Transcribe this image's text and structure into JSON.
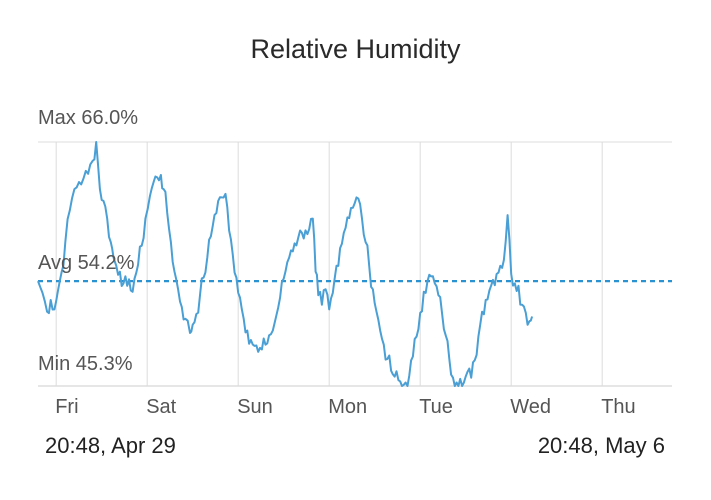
{
  "chart_data": {
    "type": "line",
    "title": "Relative Humidity",
    "series_color": "#4a9fd4",
    "avg_color": "#2b92d2",
    "grid_color": "#dddddd",
    "max_label": "Max 66.0%",
    "avg_label": "Avg 54.2%",
    "min_label": "Min 45.3%",
    "max": 66.0,
    "avg": 54.2,
    "min": 45.3,
    "ylim": [
      45.3,
      66.0
    ],
    "x_ticks": [
      "Fri",
      "Sat",
      "Sun",
      "Mon",
      "Tue",
      "Wed",
      "Thu"
    ],
    "range_start": "20:48,  Apr 29",
    "range_end": "20:48,  May 6",
    "points": [
      [
        0.0,
        54.2
      ],
      [
        0.05,
        53.2
      ],
      [
        0.1,
        51.6
      ],
      [
        0.14,
        52.6
      ],
      [
        0.18,
        51.8
      ],
      [
        0.22,
        53.4
      ],
      [
        0.26,
        55.0
      ],
      [
        0.3,
        57.5
      ],
      [
        0.35,
        60.2
      ],
      [
        0.4,
        62.0
      ],
      [
        0.45,
        62.6
      ],
      [
        0.5,
        62.9
      ],
      [
        0.55,
        63.3
      ],
      [
        0.6,
        64.4
      ],
      [
        0.64,
        66.0
      ],
      [
        0.68,
        62.0
      ],
      [
        0.72,
        61.0
      ],
      [
        0.76,
        59.5
      ],
      [
        0.8,
        57.5
      ],
      [
        0.83,
        56.2
      ],
      [
        0.86,
        55.5
      ],
      [
        0.9,
        55.0
      ],
      [
        0.94,
        54.0
      ],
      [
        0.98,
        53.8
      ],
      [
        1.02,
        53.4
      ],
      [
        1.06,
        54.4
      ],
      [
        1.1,
        55.6
      ],
      [
        1.14,
        57.2
      ],
      [
        1.18,
        59.5
      ],
      [
        1.23,
        61.4
      ],
      [
        1.27,
        62.6
      ],
      [
        1.31,
        63.0
      ],
      [
        1.35,
        63.2
      ],
      [
        1.38,
        62.0
      ],
      [
        1.42,
        60.0
      ],
      [
        1.46,
        57.5
      ],
      [
        1.5,
        55.0
      ],
      [
        1.54,
        53.5
      ],
      [
        1.58,
        52.0
      ],
      [
        1.62,
        51.0
      ],
      [
        1.67,
        49.8
      ],
      [
        1.7,
        50.5
      ],
      [
        1.74,
        51.4
      ],
      [
        1.78,
        53.0
      ],
      [
        1.82,
        54.5
      ],
      [
        1.86,
        56.2
      ],
      [
        1.9,
        58.0
      ],
      [
        1.94,
        59.8
      ],
      [
        1.98,
        61.0
      ],
      [
        2.02,
        61.3
      ],
      [
        2.06,
        61.6
      ],
      [
        2.1,
        58.5
      ],
      [
        2.14,
        56.5
      ],
      [
        2.18,
        54.5
      ],
      [
        2.22,
        52.8
      ],
      [
        2.26,
        51.0
      ],
      [
        2.3,
        50.0
      ],
      [
        2.34,
        49.2
      ],
      [
        2.38,
        48.7
      ],
      [
        2.42,
        48.2
      ],
      [
        2.46,
        48.4
      ],
      [
        2.5,
        48.8
      ],
      [
        2.54,
        49.6
      ],
      [
        2.58,
        50.0
      ],
      [
        2.62,
        51.3
      ],
      [
        2.66,
        52.8
      ],
      [
        2.7,
        54.4
      ],
      [
        2.74,
        55.8
      ],
      [
        2.78,
        56.8
      ],
      [
        2.82,
        57.4
      ],
      [
        2.86,
        57.9
      ],
      [
        2.9,
        58.3
      ],
      [
        2.94,
        58.5
      ],
      [
        2.98,
        58.6
      ],
      [
        3.02,
        59.5
      ],
      [
        3.05,
        55.0
      ],
      [
        3.08,
        53.0
      ],
      [
        3.12,
        52.2
      ],
      [
        3.16,
        53.5
      ],
      [
        3.2,
        51.8
      ],
      [
        3.24,
        53.2
      ],
      [
        3.28,
        55.5
      ],
      [
        3.32,
        57.0
      ],
      [
        3.36,
        58.3
      ],
      [
        3.4,
        59.6
      ],
      [
        3.44,
        60.4
      ],
      [
        3.48,
        60.8
      ],
      [
        3.52,
        61.2
      ],
      [
        3.56,
        59.5
      ],
      [
        3.6,
        57.5
      ],
      [
        3.64,
        55.5
      ],
      [
        3.68,
        53.5
      ],
      [
        3.72,
        51.6
      ],
      [
        3.76,
        50.0
      ],
      [
        3.8,
        48.8
      ],
      [
        3.84,
        47.6
      ],
      [
        3.88,
        46.6
      ],
      [
        3.92,
        46.1
      ],
      [
        3.96,
        45.8
      ],
      [
        4.0,
        45.3
      ],
      [
        4.04,
        45.6
      ],
      [
        4.08,
        46.2
      ],
      [
        4.12,
        47.8
      ],
      [
        4.16,
        49.5
      ],
      [
        4.2,
        51.5
      ],
      [
        4.24,
        53.3
      ],
      [
        4.28,
        54.2
      ],
      [
        4.32,
        54.6
      ],
      [
        4.36,
        54.0
      ],
      [
        4.4,
        53.0
      ],
      [
        4.44,
        51.5
      ],
      [
        4.48,
        49.6
      ],
      [
        4.52,
        47.6
      ],
      [
        4.56,
        46.0
      ],
      [
        4.6,
        45.6
      ],
      [
        4.64,
        45.9
      ],
      [
        4.68,
        45.6
      ],
      [
        4.72,
        46.5
      ],
      [
        4.76,
        46.0
      ],
      [
        4.8,
        47.5
      ],
      [
        4.84,
        49.5
      ],
      [
        4.88,
        51.6
      ],
      [
        4.92,
        52.6
      ],
      [
        4.96,
        53.4
      ],
      [
        5.0,
        54.3
      ],
      [
        5.04,
        54.8
      ],
      [
        5.08,
        55.5
      ],
      [
        5.12,
        56.0
      ],
      [
        5.16,
        59.8
      ],
      [
        5.2,
        54.8
      ],
      [
        5.24,
        54.0
      ],
      [
        5.28,
        53.8
      ],
      [
        5.32,
        52.2
      ],
      [
        5.36,
        51.5
      ],
      [
        5.4,
        50.8
      ],
      [
        5.43,
        51.2
      ]
    ]
  }
}
